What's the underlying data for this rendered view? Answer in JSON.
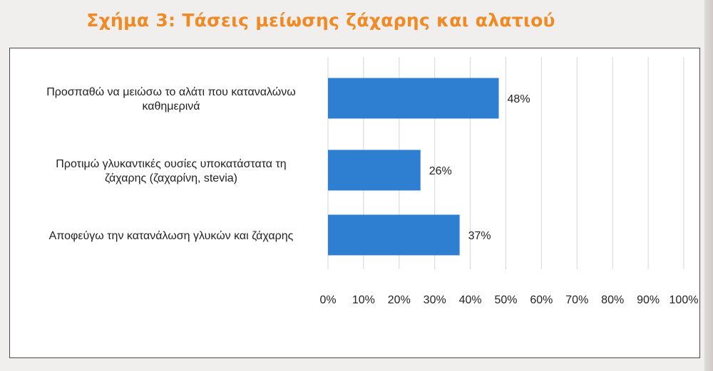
{
  "title": "Σχήμα 3: Τάσεις μείωσης ζάχαρης και αλατιού",
  "colors": {
    "title": "#f08a24",
    "bar": "#2e7fd1",
    "grid": "#d6d6d6",
    "frame": "#4a4a4a",
    "text": "#222222"
  },
  "chart_data": {
    "type": "bar",
    "orientation": "horizontal",
    "categories": [
      [
        "Προσπαθώ να μειώσω το αλάτι που καταναλώνω",
        "καθημερινά"
      ],
      [
        "Προτιμώ γλυκαντικές ουσίες υποκατάστατα τη",
        "ζάχαρης (ζαχαρίνη, stevia)"
      ],
      [
        "Αποφεύγω την κατανάλωση γλυκών και ζάχαρης"
      ]
    ],
    "values": [
      48,
      26,
      37
    ],
    "value_labels": [
      "48%",
      "26%",
      "37%"
    ],
    "xlim": [
      0,
      100
    ],
    "xticks": [
      "0%",
      "10%",
      "20%",
      "30%",
      "40%",
      "50%",
      "60%",
      "70%",
      "80%",
      "90%",
      "100%"
    ],
    "grid": true
  }
}
